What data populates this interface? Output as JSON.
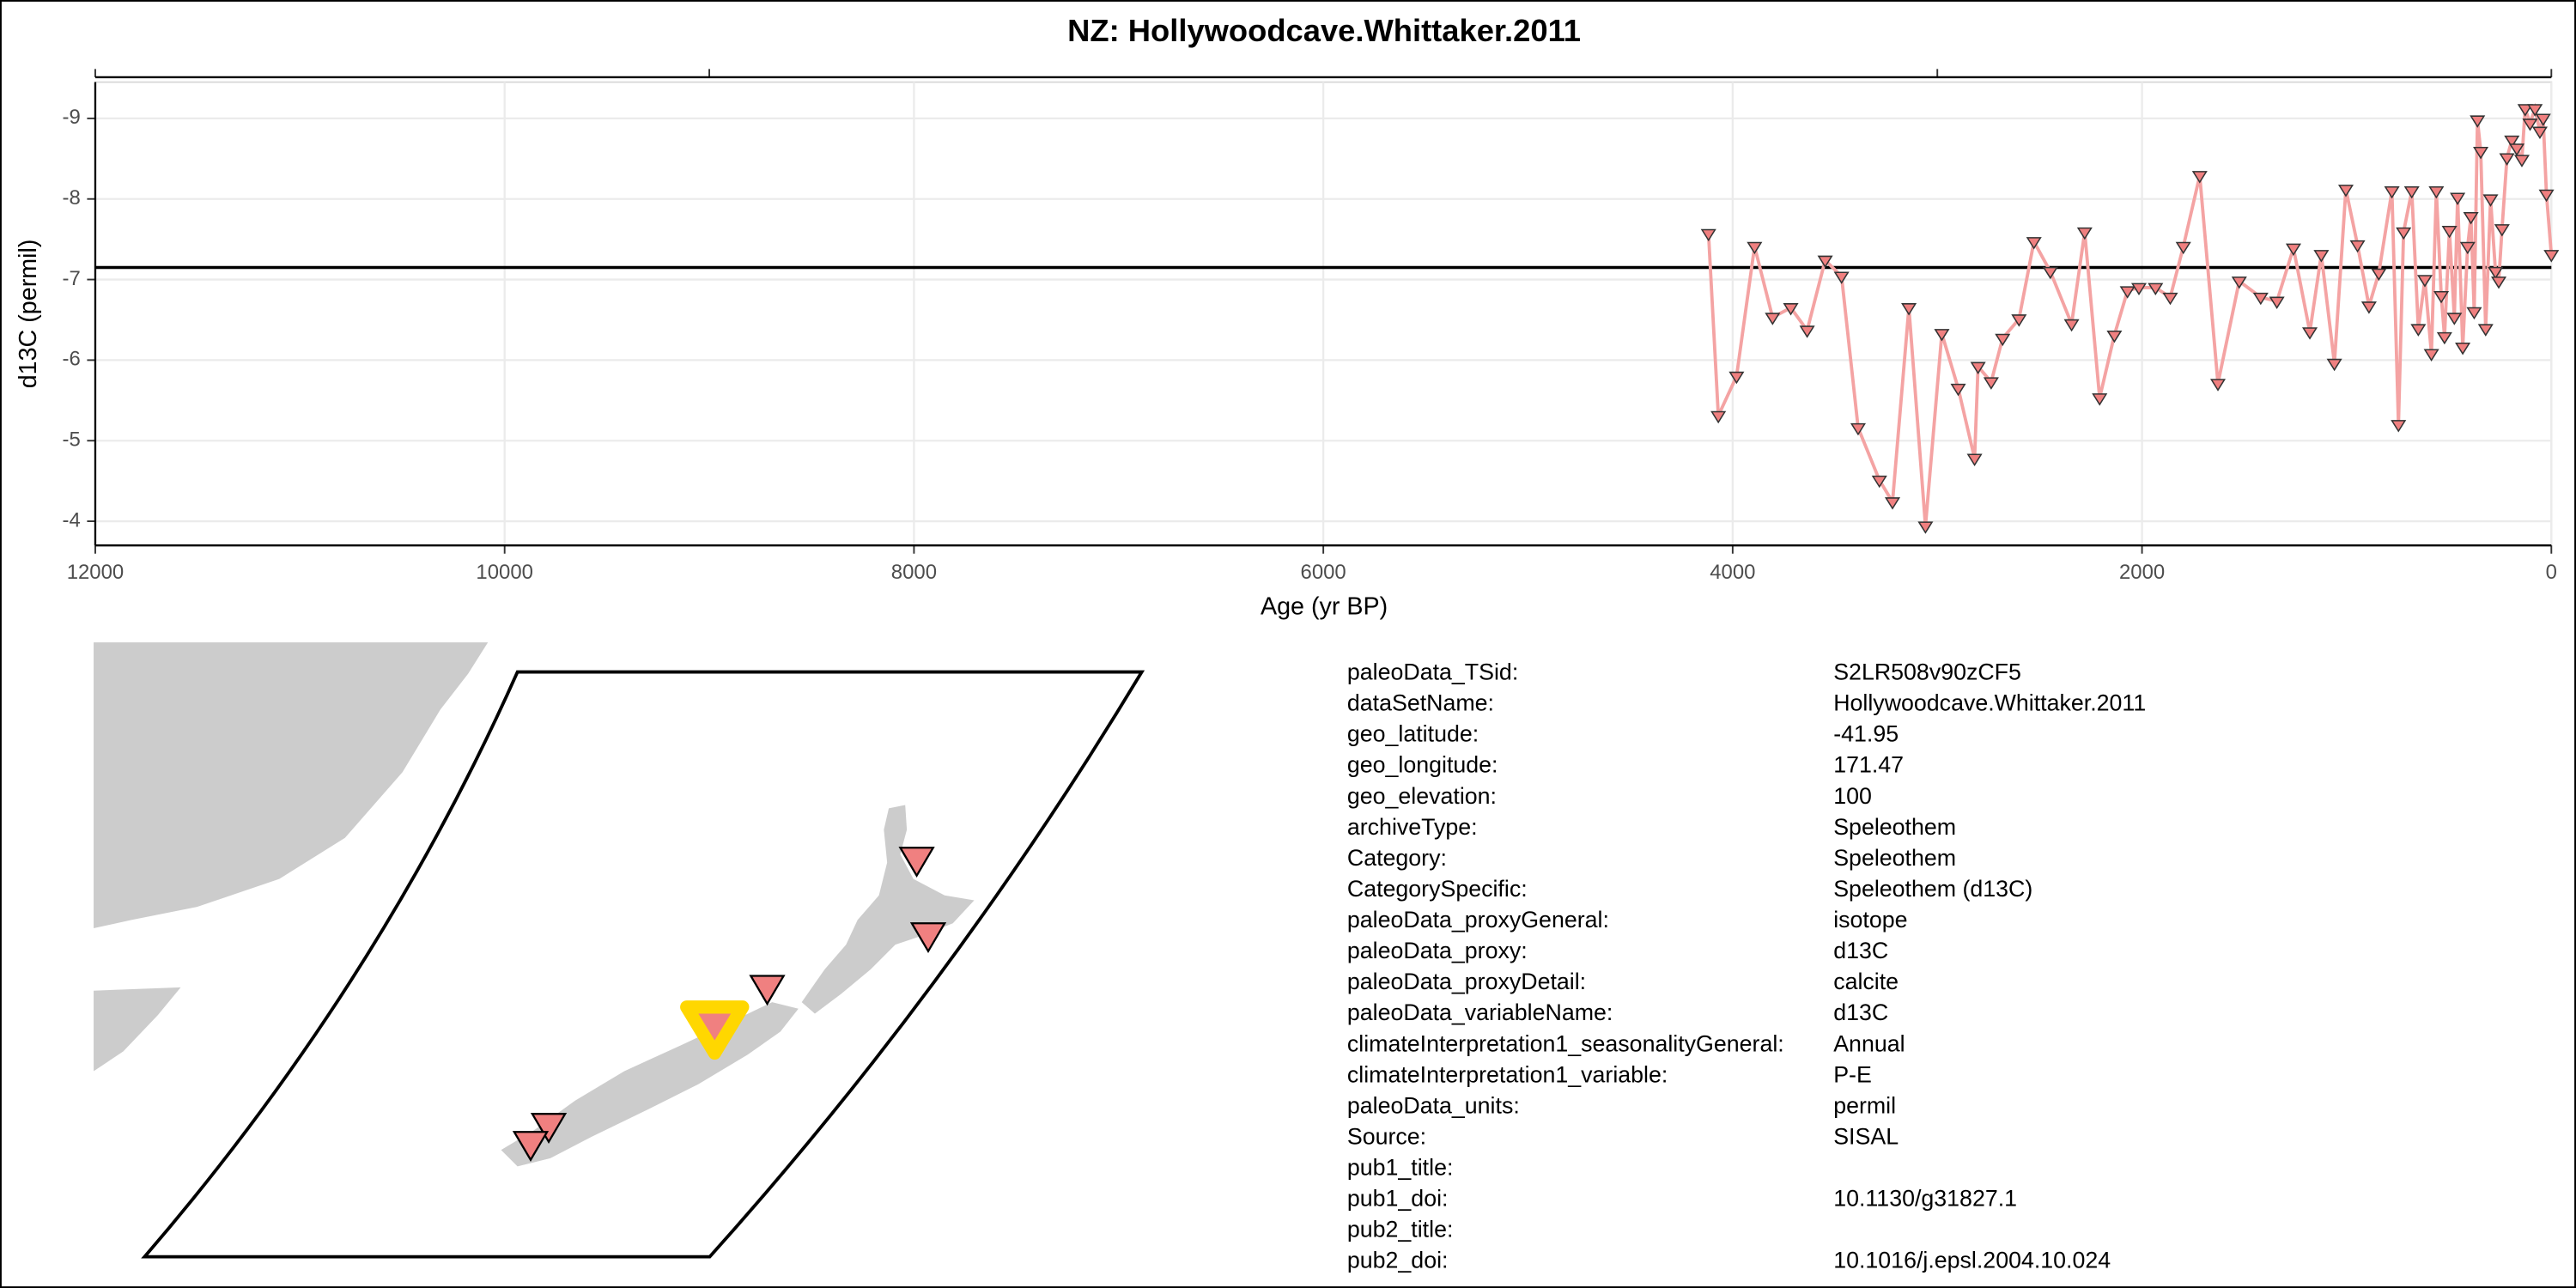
{
  "chart_data": {
    "type": "line",
    "title": "NZ: Hollywoodcave.Whittaker.2011",
    "x_label": "Age (yr BP)",
    "y_label": "d13C (permil)",
    "xlim": [
      12000,
      0
    ],
    "xticks": [
      12000,
      10000,
      8000,
      6000,
      4000,
      2000,
      0
    ],
    "xticks_top": [
      12000,
      9000,
      3000,
      0
    ],
    "ylim": [
      -3.7,
      -9.45
    ],
    "yticks": [
      -9,
      -8,
      -7,
      -6,
      -5,
      -4
    ],
    "grid": true,
    "reference_line": -7.15,
    "series": [
      {
        "name": "d13C",
        "color": "#f4a3a3",
        "marker_color": "#f08080",
        "x": [
          4118,
          4070,
          3981,
          3893,
          3805,
          3716,
          3636,
          3548,
          3468,
          3387,
          3283,
          3219,
          3139,
          3058,
          2978,
          2898,
          2818,
          2801,
          2737,
          2681,
          2601,
          2528,
          2448,
          2344,
          2280,
          2207,
          2135,
          2071,
          2015,
          1934,
          1862,
          1798,
          1718,
          1629,
          1525,
          1420,
          1341,
          1260,
          1180,
          1124,
          1060,
          1004,
          947,
          891,
          843,
          779,
          747,
          722,
          682,
          650,
          618,
          586,
          562,
          538,
          522,
          498,
          474,
          458,
          433,
          409,
          393,
          377,
          361,
          345,
          321,
          297,
          273,
          257,
          241,
          217,
          193,
          169,
          144,
          128,
          104,
          80,
          56,
          40,
          24,
          0
        ],
        "values": [
          -7.57,
          -5.31,
          -5.8,
          -7.41,
          -6.53,
          -6.65,
          -6.37,
          -7.24,
          -7.04,
          -5.16,
          -4.51,
          -4.24,
          -6.65,
          -3.94,
          -6.33,
          -5.65,
          -4.78,
          -5.92,
          -5.73,
          -6.27,
          -6.51,
          -7.47,
          -7.1,
          -6.45,
          -7.59,
          -5.53,
          -6.31,
          -6.86,
          -6.9,
          -6.9,
          -6.78,
          -7.41,
          -8.29,
          -5.71,
          -6.98,
          -6.78,
          -6.73,
          -7.39,
          -6.35,
          -7.31,
          -5.96,
          -8.12,
          -7.43,
          -6.67,
          -7.08,
          -8.1,
          -5.2,
          -7.59,
          -8.1,
          -6.39,
          -7.0,
          -6.08,
          -8.1,
          -6.8,
          -6.29,
          -7.61,
          -6.53,
          -8.02,
          -6.16,
          -7.41,
          -7.78,
          -6.6,
          -8.98,
          -8.59,
          -6.39,
          -8.0,
          -7.1,
          -6.98,
          -7.63,
          -8.51,
          -8.73,
          -8.63,
          -8.49,
          -9.12,
          -8.94,
          -9.12,
          -8.84,
          -9.0,
          -8.06,
          -7.31
        ]
      }
    ]
  },
  "metadata": {
    "rows": [
      {
        "key": "paleoData_TSid:",
        "value": "S2LR508v90zCF5"
      },
      {
        "key": "dataSetName:",
        "value": "Hollywoodcave.Whittaker.2011"
      },
      {
        "key": "geo_latitude:",
        "value": "-41.95"
      },
      {
        "key": "geo_longitude:",
        "value": "171.47"
      },
      {
        "key": "geo_elevation:",
        "value": "100"
      },
      {
        "key": "archiveType:",
        "value": "Speleothem"
      },
      {
        "key": "Category:",
        "value": "Speleothem"
      },
      {
        "key": "CategorySpecific:",
        "value": "Speleothem (d13C)"
      },
      {
        "key": "paleoData_proxyGeneral:",
        "value": "isotope"
      },
      {
        "key": "paleoData_proxy:",
        "value": "d13C"
      },
      {
        "key": "paleoData_proxyDetail:",
        "value": "calcite"
      },
      {
        "key": "paleoData_variableName:",
        "value": "d13C"
      },
      {
        "key": "climateInterpretation1_seasonalityGeneral:",
        "value": "Annual"
      },
      {
        "key": "climateInterpretation1_variable:",
        "value": "P-E"
      },
      {
        "key": "paleoData_units:",
        "value": "permil"
      },
      {
        "key": "Source:",
        "value": "SISAL"
      },
      {
        "key": "pub1_title:"
      },
      {
        "key": "pub1_doi:",
        "value": "10.1130/g31827.1"
      },
      {
        "key": "pub2_title:"
      },
      {
        "key": "pub2_doi:",
        "value": "10.1016/j.epsl.2004.10.024"
      }
    ]
  }
}
